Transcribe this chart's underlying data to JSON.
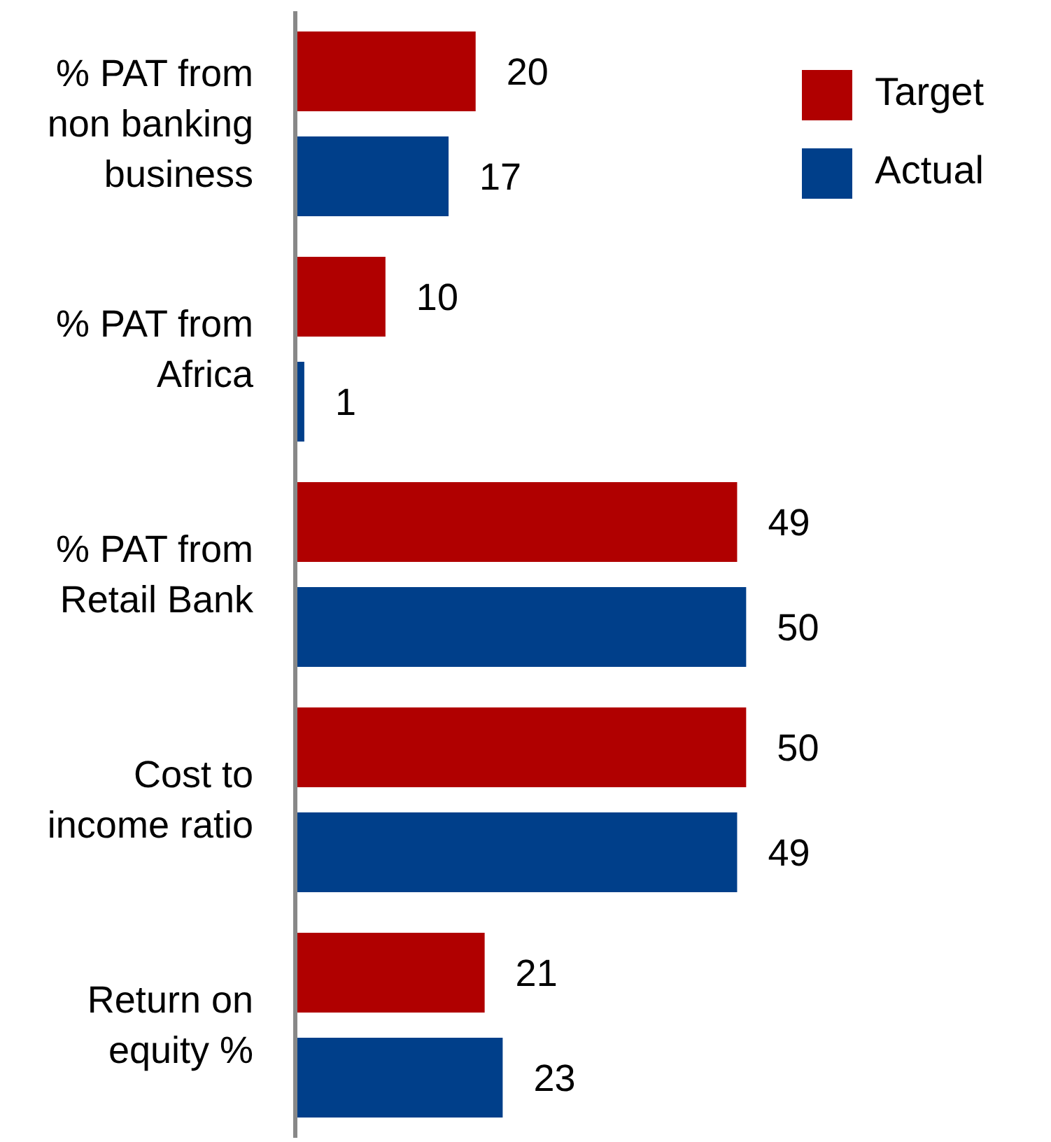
{
  "chart_data": {
    "type": "bar",
    "orientation": "horizontal",
    "categories": [
      "% PAT from non banking business",
      "% PAT from Africa",
      "% PAT from Retail Bank",
      "Cost to income ratio",
      "Return on equity %"
    ],
    "series": [
      {
        "name": "Target",
        "color": "#b00000",
        "values": [
          20,
          10,
          49,
          50,
          21
        ]
      },
      {
        "name": "Actual",
        "color": "#003f8a",
        "values": [
          17,
          1,
          50,
          49,
          23
        ]
      }
    ],
    "data_labels": true,
    "legend": "top right",
    "grid": false
  }
}
